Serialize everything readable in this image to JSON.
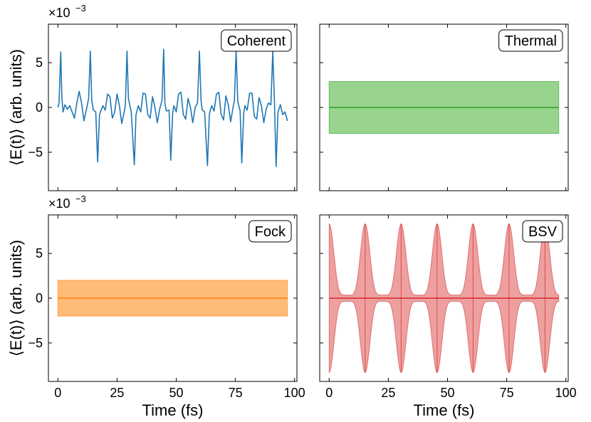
{
  "chart_data": [
    {
      "type": "line",
      "label": "Coherent",
      "color": "#1f77b4",
      "ylabel": "⟨E(t)⟩ (arb. units)",
      "xlabel": "",
      "y_scale_label": "×10",
      "y_scale_exp": "−3",
      "xlim": [
        -4,
        101
      ],
      "ylim": [
        -9.3,
        9.3
      ],
      "x_ticks": [
        0,
        25,
        50,
        75,
        100
      ],
      "y_ticks": [
        5,
        0,
        -5
      ],
      "y_tick_labels": [
        "5",
        "0",
        "−5"
      ],
      "series": [
        {
          "name": "Coherent",
          "x": [
            0,
            0.5,
            1.2,
            1.7,
            2.2,
            3,
            4,
            5,
            6,
            7,
            8,
            9,
            10,
            11,
            12,
            13,
            13.7,
            14.3,
            15,
            16,
            16.8,
            17.6,
            18,
            19,
            20,
            21,
            22,
            23,
            24,
            25,
            26,
            27,
            28,
            28.5,
            29.2,
            29.8,
            31,
            32.3,
            33,
            34,
            35,
            36,
            37,
            38,
            39,
            40,
            41,
            42,
            43,
            44,
            44.7,
            45.2,
            45.8,
            47,
            47.7,
            48.5,
            49,
            50,
            51,
            52,
            53,
            54,
            55,
            56,
            57,
            58,
            59,
            59.8,
            60.5,
            61,
            62,
            63.2,
            64,
            65,
            66,
            67,
            68,
            69,
            70,
            71,
            72,
            73,
            74,
            74.6,
            75.3,
            76,
            77,
            77.7,
            78.5,
            79,
            80,
            81,
            82,
            83,
            84,
            85,
            86,
            87,
            88,
            89,
            90,
            90.8,
            91.5,
            92.2,
            93,
            94,
            95,
            96,
            97
          ],
          "y": [
            0,
            0.5,
            6.2,
            1,
            -0.5,
            0.3,
            -0.2,
            0.2,
            -0.5,
            -1.2,
            0.5,
            1.8,
            0.5,
            -1.5,
            -0.3,
            1,
            6.3,
            0.8,
            -0.3,
            -0.5,
            -6.1,
            -0.8,
            -0.5,
            0.2,
            -0.3,
            1.5,
            1.2,
            -1.2,
            -0.5,
            1.5,
            0.2,
            -1.8,
            -0.5,
            0.2,
            6.3,
            1,
            -0.5,
            -6.4,
            -0.8,
            0.2,
            -0.5,
            1.6,
            1.5,
            -0.8,
            -1.2,
            1.2,
            0,
            -1.7,
            -0.2,
            0.8,
            6.5,
            0.5,
            -0.4,
            -0.3,
            -5.9,
            -0.6,
            0.2,
            -0.5,
            1.5,
            1.7,
            -0.8,
            -1.3,
            1,
            0,
            -1.7,
            0,
            0.5,
            6.3,
            0.7,
            -0.3,
            -0.5,
            -6.5,
            -0.7,
            0.2,
            -0.4,
            1.5,
            1.7,
            -0.8,
            -1.4,
            1.3,
            0.3,
            -1.6,
            0,
            0.8,
            6.4,
            0.7,
            -0.4,
            -6.2,
            -0.7,
            0.2,
            -0.3,
            1.6,
            1.6,
            -1,
            -1.3,
            1.1,
            0.2,
            -1.7,
            -0.2,
            0.5,
            0.3,
            6.3,
            0.7,
            -6.6,
            -0.5,
            0.3,
            -0.8,
            -0.5,
            -1.5
          ]
        }
      ]
    },
    {
      "type": "area",
      "label": "Thermal",
      "color": "#2ca02c",
      "fill": "#98d48e",
      "xlim": [
        -4,
        101
      ],
      "ylim": [
        -9.3,
        9.3
      ],
      "series": [
        {
          "name": "Thermal mean",
          "x": [
            0,
            97
          ],
          "y": [
            0,
            0
          ]
        },
        {
          "name": "Thermal band",
          "x": [
            0,
            97
          ],
          "upper": [
            2.9,
            2.9
          ],
          "lower": [
            -2.9,
            -2.9
          ]
        }
      ]
    },
    {
      "type": "area",
      "label": "Fock",
      "color": "#ff7f0e",
      "fill": "#ffbb78",
      "ylabel": "⟨E(t)⟩ (arb. units)",
      "xlabel": "Time (fs)",
      "y_scale_label": "×10",
      "y_scale_exp": "−3",
      "xlim": [
        -4,
        101
      ],
      "ylim": [
        -9.3,
        9.3
      ],
      "x_ticks": [
        0,
        25,
        50,
        75,
        100
      ],
      "x_tick_labels": [
        "0",
        "25",
        "50",
        "75",
        "100"
      ],
      "y_ticks": [
        5,
        0,
        -5
      ],
      "y_tick_labels": [
        "5",
        "0",
        "−5"
      ],
      "series": [
        {
          "name": "Fock mean",
          "x": [
            0,
            97
          ],
          "y": [
            0,
            0
          ]
        },
        {
          "name": "Fock band",
          "x": [
            0,
            97
          ],
          "upper": [
            2.0,
            2.0
          ],
          "lower": [
            -2.0,
            -2.0
          ]
        }
      ]
    },
    {
      "type": "area",
      "label": "BSV",
      "color": "#d62728",
      "fill": "#eda0a0",
      "xlabel": "Time (fs)",
      "xlim": [
        -4,
        101
      ],
      "ylim": [
        -9.3,
        9.3
      ],
      "x_ticks": [
        0,
        25,
        50,
        75,
        100
      ],
      "x_tick_labels": [
        "0",
        "25",
        "50",
        "75",
        "100"
      ],
      "period_fs": 15.2,
      "peak_amplitude": 8.3,
      "trough_amplitude": 0.35,
      "series": [
        {
          "name": "BSV mean",
          "x": [
            0,
            97
          ],
          "y": [
            0,
            0
          ]
        },
        {
          "name": "BSV envelope",
          "x_start": 0,
          "x_end": 97,
          "description": "periodic band, max ±8.3 near each period boundary, min ±0.35 mid-period"
        }
      ]
    }
  ]
}
